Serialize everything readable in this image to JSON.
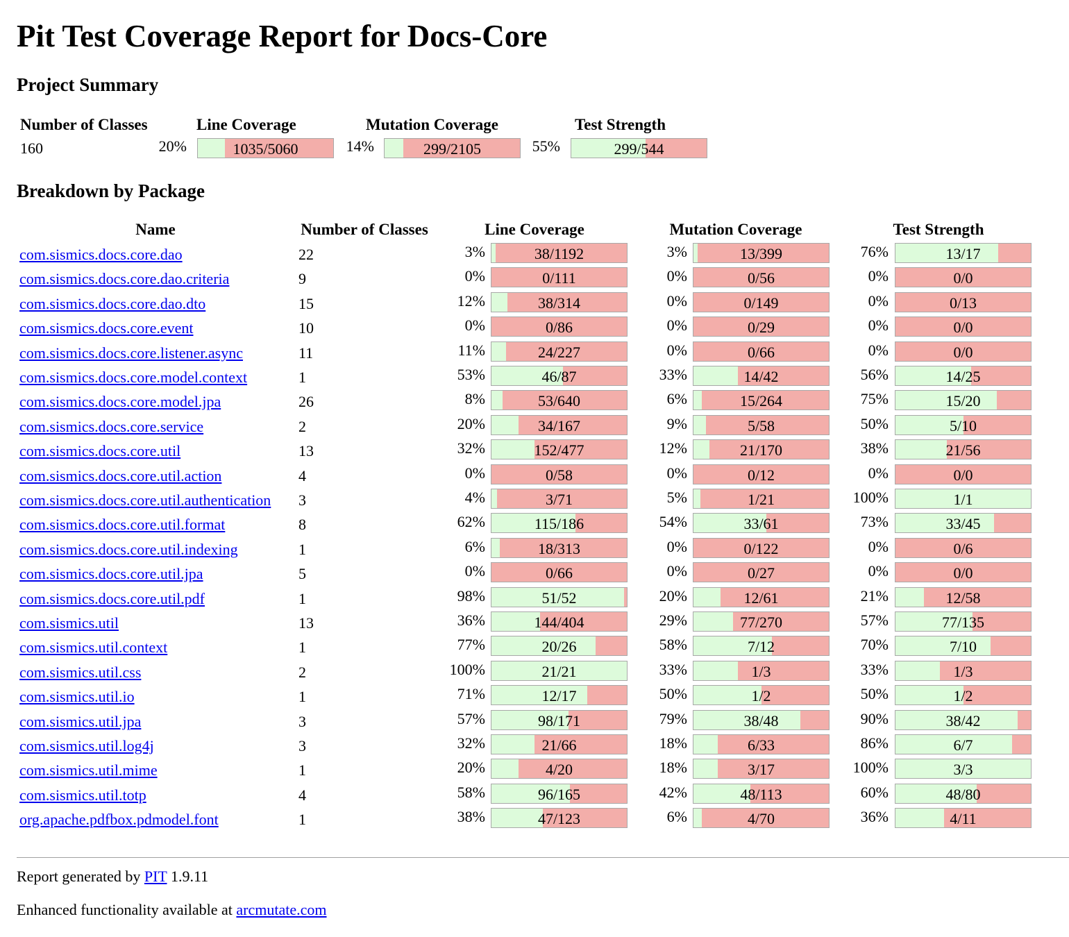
{
  "title": "Pit Test Coverage Report for Docs-Core",
  "summary": {
    "heading": "Project Summary",
    "headers": {
      "classes": "Number of Classes",
      "line": "Line Coverage",
      "mutation": "Mutation Coverage",
      "strength": "Test Strength"
    },
    "num_classes": "160",
    "line": {
      "pct": "20%",
      "text": "1035/5060",
      "fraction": 0.2
    },
    "mutation": {
      "pct": "14%",
      "text": "299/2105",
      "fraction": 0.14
    },
    "strength": {
      "pct": "55%",
      "text": "299/544",
      "fraction": 0.55
    }
  },
  "breakdown": {
    "heading": "Breakdown by Package",
    "headers": {
      "name": "Name",
      "classes": "Number of Classes",
      "line": "Line Coverage",
      "mutation": "Mutation Coverage",
      "strength": "Test Strength"
    },
    "packages": [
      {
        "name": "com.sismics.docs.core.dao",
        "classes": "22",
        "line": {
          "pct": "3%",
          "text": "38/1192",
          "fraction": 0.03
        },
        "mutation": {
          "pct": "3%",
          "text": "13/399",
          "fraction": 0.03
        },
        "strength": {
          "pct": "76%",
          "text": "13/17",
          "fraction": 0.76
        }
      },
      {
        "name": "com.sismics.docs.core.dao.criteria",
        "classes": "9",
        "line": {
          "pct": "0%",
          "text": "0/111",
          "fraction": 0
        },
        "mutation": {
          "pct": "0%",
          "text": "0/56",
          "fraction": 0
        },
        "strength": {
          "pct": "0%",
          "text": "0/0",
          "fraction": 0
        }
      },
      {
        "name": "com.sismics.docs.core.dao.dto",
        "classes": "15",
        "line": {
          "pct": "12%",
          "text": "38/314",
          "fraction": 0.12
        },
        "mutation": {
          "pct": "0%",
          "text": "0/149",
          "fraction": 0
        },
        "strength": {
          "pct": "0%",
          "text": "0/13",
          "fraction": 0
        }
      },
      {
        "name": "com.sismics.docs.core.event",
        "classes": "10",
        "line": {
          "pct": "0%",
          "text": "0/86",
          "fraction": 0
        },
        "mutation": {
          "pct": "0%",
          "text": "0/29",
          "fraction": 0
        },
        "strength": {
          "pct": "0%",
          "text": "0/0",
          "fraction": 0
        }
      },
      {
        "name": "com.sismics.docs.core.listener.async",
        "classes": "11",
        "line": {
          "pct": "11%",
          "text": "24/227",
          "fraction": 0.11
        },
        "mutation": {
          "pct": "0%",
          "text": "0/66",
          "fraction": 0
        },
        "strength": {
          "pct": "0%",
          "text": "0/0",
          "fraction": 0
        }
      },
      {
        "name": "com.sismics.docs.core.model.context",
        "classes": "1",
        "line": {
          "pct": "53%",
          "text": "46/87",
          "fraction": 0.53
        },
        "mutation": {
          "pct": "33%",
          "text": "14/42",
          "fraction": 0.33
        },
        "strength": {
          "pct": "56%",
          "text": "14/25",
          "fraction": 0.56
        }
      },
      {
        "name": "com.sismics.docs.core.model.jpa",
        "classes": "26",
        "line": {
          "pct": "8%",
          "text": "53/640",
          "fraction": 0.08
        },
        "mutation": {
          "pct": "6%",
          "text": "15/264",
          "fraction": 0.06
        },
        "strength": {
          "pct": "75%",
          "text": "15/20",
          "fraction": 0.75
        }
      },
      {
        "name": "com.sismics.docs.core.service",
        "classes": "2",
        "line": {
          "pct": "20%",
          "text": "34/167",
          "fraction": 0.2
        },
        "mutation": {
          "pct": "9%",
          "text": "5/58",
          "fraction": 0.09
        },
        "strength": {
          "pct": "50%",
          "text": "5/10",
          "fraction": 0.5
        }
      },
      {
        "name": "com.sismics.docs.core.util",
        "classes": "13",
        "line": {
          "pct": "32%",
          "text": "152/477",
          "fraction": 0.32
        },
        "mutation": {
          "pct": "12%",
          "text": "21/170",
          "fraction": 0.12
        },
        "strength": {
          "pct": "38%",
          "text": "21/56",
          "fraction": 0.38
        }
      },
      {
        "name": "com.sismics.docs.core.util.action",
        "classes": "4",
        "line": {
          "pct": "0%",
          "text": "0/58",
          "fraction": 0
        },
        "mutation": {
          "pct": "0%",
          "text": "0/12",
          "fraction": 0
        },
        "strength": {
          "pct": "0%",
          "text": "0/0",
          "fraction": 0
        }
      },
      {
        "name": "com.sismics.docs.core.util.authentication",
        "classes": "3",
        "line": {
          "pct": "4%",
          "text": "3/71",
          "fraction": 0.04
        },
        "mutation": {
          "pct": "5%",
          "text": "1/21",
          "fraction": 0.05
        },
        "strength": {
          "pct": "100%",
          "text": "1/1",
          "fraction": 1.0
        }
      },
      {
        "name": "com.sismics.docs.core.util.format",
        "classes": "8",
        "line": {
          "pct": "62%",
          "text": "115/186",
          "fraction": 0.62
        },
        "mutation": {
          "pct": "54%",
          "text": "33/61",
          "fraction": 0.54
        },
        "strength": {
          "pct": "73%",
          "text": "33/45",
          "fraction": 0.73
        }
      },
      {
        "name": "com.sismics.docs.core.util.indexing",
        "classes": "1",
        "line": {
          "pct": "6%",
          "text": "18/313",
          "fraction": 0.06
        },
        "mutation": {
          "pct": "0%",
          "text": "0/122",
          "fraction": 0
        },
        "strength": {
          "pct": "0%",
          "text": "0/6",
          "fraction": 0
        }
      },
      {
        "name": "com.sismics.docs.core.util.jpa",
        "classes": "5",
        "line": {
          "pct": "0%",
          "text": "0/66",
          "fraction": 0
        },
        "mutation": {
          "pct": "0%",
          "text": "0/27",
          "fraction": 0
        },
        "strength": {
          "pct": "0%",
          "text": "0/0",
          "fraction": 0
        }
      },
      {
        "name": "com.sismics.docs.core.util.pdf",
        "classes": "1",
        "line": {
          "pct": "98%",
          "text": "51/52",
          "fraction": 0.98
        },
        "mutation": {
          "pct": "20%",
          "text": "12/61",
          "fraction": 0.2
        },
        "strength": {
          "pct": "21%",
          "text": "12/58",
          "fraction": 0.21
        }
      },
      {
        "name": "com.sismics.util",
        "classes": "13",
        "line": {
          "pct": "36%",
          "text": "144/404",
          "fraction": 0.36
        },
        "mutation": {
          "pct": "29%",
          "text": "77/270",
          "fraction": 0.29
        },
        "strength": {
          "pct": "57%",
          "text": "77/135",
          "fraction": 0.57
        }
      },
      {
        "name": "com.sismics.util.context",
        "classes": "1",
        "line": {
          "pct": "77%",
          "text": "20/26",
          "fraction": 0.77
        },
        "mutation": {
          "pct": "58%",
          "text": "7/12",
          "fraction": 0.58
        },
        "strength": {
          "pct": "70%",
          "text": "7/10",
          "fraction": 0.7
        }
      },
      {
        "name": "com.sismics.util.css",
        "classes": "2",
        "line": {
          "pct": "100%",
          "text": "21/21",
          "fraction": 1.0
        },
        "mutation": {
          "pct": "33%",
          "text": "1/3",
          "fraction": 0.33
        },
        "strength": {
          "pct": "33%",
          "text": "1/3",
          "fraction": 0.33
        }
      },
      {
        "name": "com.sismics.util.io",
        "classes": "1",
        "line": {
          "pct": "71%",
          "text": "12/17",
          "fraction": 0.71
        },
        "mutation": {
          "pct": "50%",
          "text": "1/2",
          "fraction": 0.5
        },
        "strength": {
          "pct": "50%",
          "text": "1/2",
          "fraction": 0.5
        }
      },
      {
        "name": "com.sismics.util.jpa",
        "classes": "3",
        "line": {
          "pct": "57%",
          "text": "98/171",
          "fraction": 0.57
        },
        "mutation": {
          "pct": "79%",
          "text": "38/48",
          "fraction": 0.79
        },
        "strength": {
          "pct": "90%",
          "text": "38/42",
          "fraction": 0.9
        }
      },
      {
        "name": "com.sismics.util.log4j",
        "classes": "3",
        "line": {
          "pct": "32%",
          "text": "21/66",
          "fraction": 0.32
        },
        "mutation": {
          "pct": "18%",
          "text": "6/33",
          "fraction": 0.18
        },
        "strength": {
          "pct": "86%",
          "text": "6/7",
          "fraction": 0.86
        }
      },
      {
        "name": "com.sismics.util.mime",
        "classes": "1",
        "line": {
          "pct": "20%",
          "text": "4/20",
          "fraction": 0.2
        },
        "mutation": {
          "pct": "18%",
          "text": "3/17",
          "fraction": 0.18
        },
        "strength": {
          "pct": "100%",
          "text": "3/3",
          "fraction": 1.0
        }
      },
      {
        "name": "com.sismics.util.totp",
        "classes": "4",
        "line": {
          "pct": "58%",
          "text": "96/165",
          "fraction": 0.58
        },
        "mutation": {
          "pct": "42%",
          "text": "48/113",
          "fraction": 0.42
        },
        "strength": {
          "pct": "60%",
          "text": "48/80",
          "fraction": 0.6
        }
      },
      {
        "name": "org.apache.pdfbox.pdmodel.font",
        "classes": "1",
        "line": {
          "pct": "38%",
          "text": "47/123",
          "fraction": 0.38
        },
        "mutation": {
          "pct": "6%",
          "text": "4/70",
          "fraction": 0.06
        },
        "strength": {
          "pct": "36%",
          "text": "4/11",
          "fraction": 0.36
        }
      }
    ]
  },
  "footer": {
    "generated_prefix": "Report generated by",
    "pit_link": "PIT",
    "version": "1.9.11",
    "enhanced_prefix": "Enhanced functionality available at",
    "arcmutate_link": "arcmutate.com"
  },
  "colors": {
    "covered": "#ddfbdb",
    "uncovered": "#f3aeaa",
    "link": "#0000ee"
  }
}
